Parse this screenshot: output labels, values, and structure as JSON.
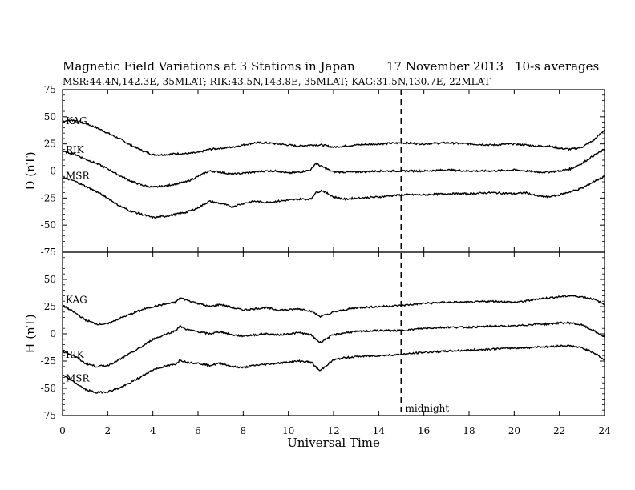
{
  "chart_data": {
    "type": "line",
    "title": "Magnetic Field Variations at 3 Stations in Japan",
    "date": "17 November 2013",
    "averaging": "10-s averages",
    "subtitle": "MSR:44.4N,142.3E, 35MLAT;  RIK:43.5N,143.8E, 35MLAT;  KAG:31.5N,130.7E, 22MLAT",
    "xlabel": "Universal Time",
    "xlim": [
      0,
      24
    ],
    "xticks": [
      0,
      2,
      4,
      6,
      8,
      10,
      12,
      14,
      16,
      18,
      20,
      22,
      24
    ],
    "annotation": {
      "x": 15,
      "label": "midnight"
    },
    "panels": [
      {
        "ylabel": "D (nT)",
        "ylim": [
          -75,
          75
        ],
        "yticks": [
          -75,
          -50,
          -25,
          0,
          25,
          50,
          75
        ],
        "series": [
          {
            "name": "KAG",
            "x": [
              0,
              0.5,
              1,
              1.5,
              2,
              2.5,
              3,
              3.5,
              4,
              4.5,
              5,
              5.5,
              6,
              6.5,
              7,
              7.5,
              8,
              8.5,
              9,
              9.5,
              10,
              10.5,
              11,
              11.5,
              12,
              12.5,
              13,
              14,
              15,
              16,
              17,
              18,
              19,
              20,
              20.5,
              21,
              21.5,
              22,
              22.5,
              23,
              23.5,
              24
            ],
            "y": [
              46,
              47,
              44,
              40,
              35,
              30,
              24,
              19,
              15,
              15,
              16,
              16,
              17,
              20,
              21,
              22,
              24,
              26,
              26,
              25,
              24,
              23,
              24,
              24,
              22,
              23,
              24,
              25,
              26,
              25,
              26,
              25,
              24,
              25,
              24,
              23,
              23,
              21,
              20,
              22,
              28,
              38
            ]
          },
          {
            "name": "RIK",
            "x": [
              0,
              0.5,
              1,
              1.5,
              2,
              2.5,
              3,
              3.5,
              4,
              4.5,
              5,
              5.5,
              6,
              6.5,
              7,
              7.5,
              8,
              8.5,
              9,
              9.5,
              10,
              10.5,
              11,
              11.2,
              11.5,
              12,
              12.5,
              13,
              14,
              15,
              16,
              17,
              18,
              19,
              20,
              20.5,
              21,
              21.5,
              22,
              22.5,
              23,
              23.5,
              24
            ],
            "y": [
              18,
              16,
              11,
              7,
              2,
              -4,
              -9,
              -13,
              -15,
              -14,
              -12,
              -10,
              -5,
              0,
              -1,
              -3,
              -2,
              -1,
              0,
              0,
              -2,
              -1,
              1,
              7,
              4,
              -1,
              -1,
              -1,
              0,
              0,
              0,
              1,
              0,
              0,
              1,
              0,
              -1,
              -1,
              0,
              2,
              7,
              14,
              20
            ]
          },
          {
            "name": "MSR",
            "x": [
              0,
              0.5,
              1,
              1.5,
              2,
              2.5,
              3,
              3.5,
              4,
              4.5,
              5,
              5.5,
              6,
              6.5,
              7,
              7.5,
              8,
              8.5,
              9,
              9.5,
              10,
              10.5,
              11,
              11.2,
              11.5,
              12,
              12.5,
              13,
              14,
              15,
              16,
              17,
              18,
              19,
              20,
              20.5,
              21,
              21.5,
              22,
              22.5,
              23,
              23.5,
              24
            ],
            "y": [
              -6,
              -9,
              -14,
              -19,
              -25,
              -32,
              -37,
              -40,
              -43,
              -42,
              -40,
              -38,
              -34,
              -28,
              -30,
              -33,
              -30,
              -28,
              -29,
              -28,
              -27,
              -26,
              -26,
              -20,
              -18,
              -24,
              -26,
              -25,
              -24,
              -22,
              -22,
              -21,
              -21,
              -20,
              -21,
              -20,
              -23,
              -24,
              -22,
              -19,
              -16,
              -10,
              -5
            ]
          }
        ]
      },
      {
        "ylabel": "H (nT)",
        "ylim": [
          -75,
          75
        ],
        "yticks": [
          -75,
          -50,
          -25,
          0,
          25,
          50,
          75
        ],
        "series": [
          {
            "name": "KAG",
            "x": [
              0,
              0.5,
              1,
              1.5,
              2,
              2.5,
              3,
              3.5,
              4,
              4.5,
              5,
              5.2,
              5.5,
              6,
              6.5,
              7,
              7.5,
              8,
              8.5,
              9,
              9.5,
              10,
              10.5,
              11,
              11.4,
              11.8,
              12,
              12.5,
              13,
              14,
              15,
              16,
              17,
              18,
              19,
              20,
              20.5,
              21,
              21.5,
              22,
              22.5,
              23,
              23.5,
              24
            ],
            "y": [
              26,
              20,
              13,
              9,
              9,
              14,
              18,
              22,
              25,
              27,
              29,
              33,
              31,
              28,
              25,
              27,
              24,
              22,
              23,
              24,
              22,
              22,
              23,
              21,
              16,
              18,
              20,
              22,
              24,
              25,
              26,
              28,
              29,
              29,
              30,
              29,
              30,
              32,
              33,
              34,
              35,
              34,
              32,
              27
            ]
          },
          {
            "name": "RIK",
            "x": [
              0,
              0.5,
              1,
              1.5,
              2,
              2.5,
              3,
              3.5,
              4,
              4.5,
              5,
              5.2,
              5.5,
              6,
              6.5,
              7,
              7.5,
              8,
              8.5,
              9,
              9.5,
              10,
              10.5,
              11,
              11.4,
              11.8,
              12,
              12.5,
              13,
              14,
              15,
              16,
              17,
              18,
              19,
              20,
              20.5,
              21,
              21.5,
              22,
              22.5,
              23,
              23.5,
              24
            ],
            "y": [
              -16,
              -20,
              -27,
              -30,
              -29,
              -24,
              -18,
              -12,
              -5,
              -1,
              3,
              7,
              4,
              2,
              0,
              2,
              -1,
              -2,
              -1,
              0,
              -1,
              0,
              1,
              -1,
              -8,
              -3,
              -1,
              1,
              2,
              3,
              3,
              5,
              6,
              6,
              7,
              7,
              8,
              9,
              9,
              10,
              10,
              8,
              3,
              -3
            ]
          },
          {
            "name": "MSR",
            "x": [
              0,
              0.5,
              1,
              1.5,
              2,
              2.5,
              3,
              3.5,
              4,
              4.5,
              5,
              5.2,
              5.5,
              6,
              6.5,
              7,
              7.5,
              8,
              8.5,
              9,
              9.5,
              10,
              10.5,
              11,
              11.4,
              11.8,
              12,
              12.5,
              13,
              14,
              15,
              16,
              17,
              18,
              19,
              20,
              20.5,
              21,
              21.5,
              22,
              22.5,
              23,
              23.5,
              24
            ],
            "y": [
              -38,
              -44,
              -51,
              -54,
              -53,
              -50,
              -45,
              -39,
              -33,
              -30,
              -28,
              -24,
              -26,
              -27,
              -29,
              -27,
              -30,
              -31,
              -29,
              -28,
              -27,
              -26,
              -25,
              -26,
              -34,
              -27,
              -24,
              -22,
              -21,
              -20,
              -19,
              -17,
              -16,
              -15,
              -14,
              -13,
              -13,
              -12,
              -12,
              -11,
              -11,
              -13,
              -17,
              -24
            ]
          }
        ]
      }
    ]
  }
}
